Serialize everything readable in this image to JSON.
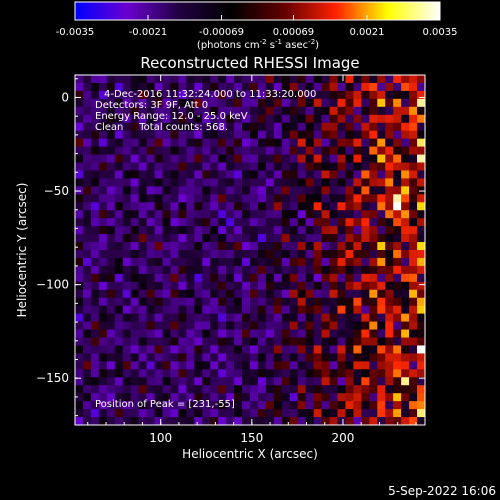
{
  "colorbar": {
    "ticks": [
      "-0.0035",
      "-0.0021",
      "-0.00069",
      "0.00069",
      "0.0021",
      "0.0035"
    ],
    "unit_label": "(photons cm",
    "unit_sup1": "-2",
    "unit_mid": " s",
    "unit_sup2": "-1",
    "unit_mid2": " asec",
    "unit_sup3": "-2",
    "unit_end": ")",
    "colors": [
      "#0000ff",
      "#6a00d0",
      "#200040",
      "#000000",
      "#600000",
      "#ff2000",
      "#ffff00",
      "#ffffff"
    ]
  },
  "chart_data": {
    "type": "heatmap",
    "title": "Reconstructed RHESSI Image",
    "xlabel": "Heliocentric X (arcsec)",
    "ylabel": "Heliocentric Y (arcsec)",
    "xlim": [
      53,
      245
    ],
    "ylim": [
      -175,
      12
    ],
    "xticks": [
      100,
      150,
      200
    ],
    "yticks": [
      0,
      -50,
      -100,
      -150
    ],
    "xtick_labels": [
      "100",
      "150",
      "200"
    ],
    "ytick_labels": [
      "0",
      "−50",
      "−100",
      "−150"
    ],
    "zlim": [
      -0.0035,
      0.0035
    ],
    "peak": {
      "x": 231,
      "y": -55
    },
    "annotations": {
      "line1": "4-Dec-2016 11:32:24.000 to 11:33:20.000",
      "line2": "Detectors: 3F 9F, Att 0",
      "line3": "Energy Range: 12.0 - 25.0 keV",
      "line4": "Clean     Total counts: 568.",
      "peak_label": "Position of Peak = [231,-55]"
    }
  },
  "footer": {
    "timestamp": "5-Sep-2022 16:06"
  }
}
